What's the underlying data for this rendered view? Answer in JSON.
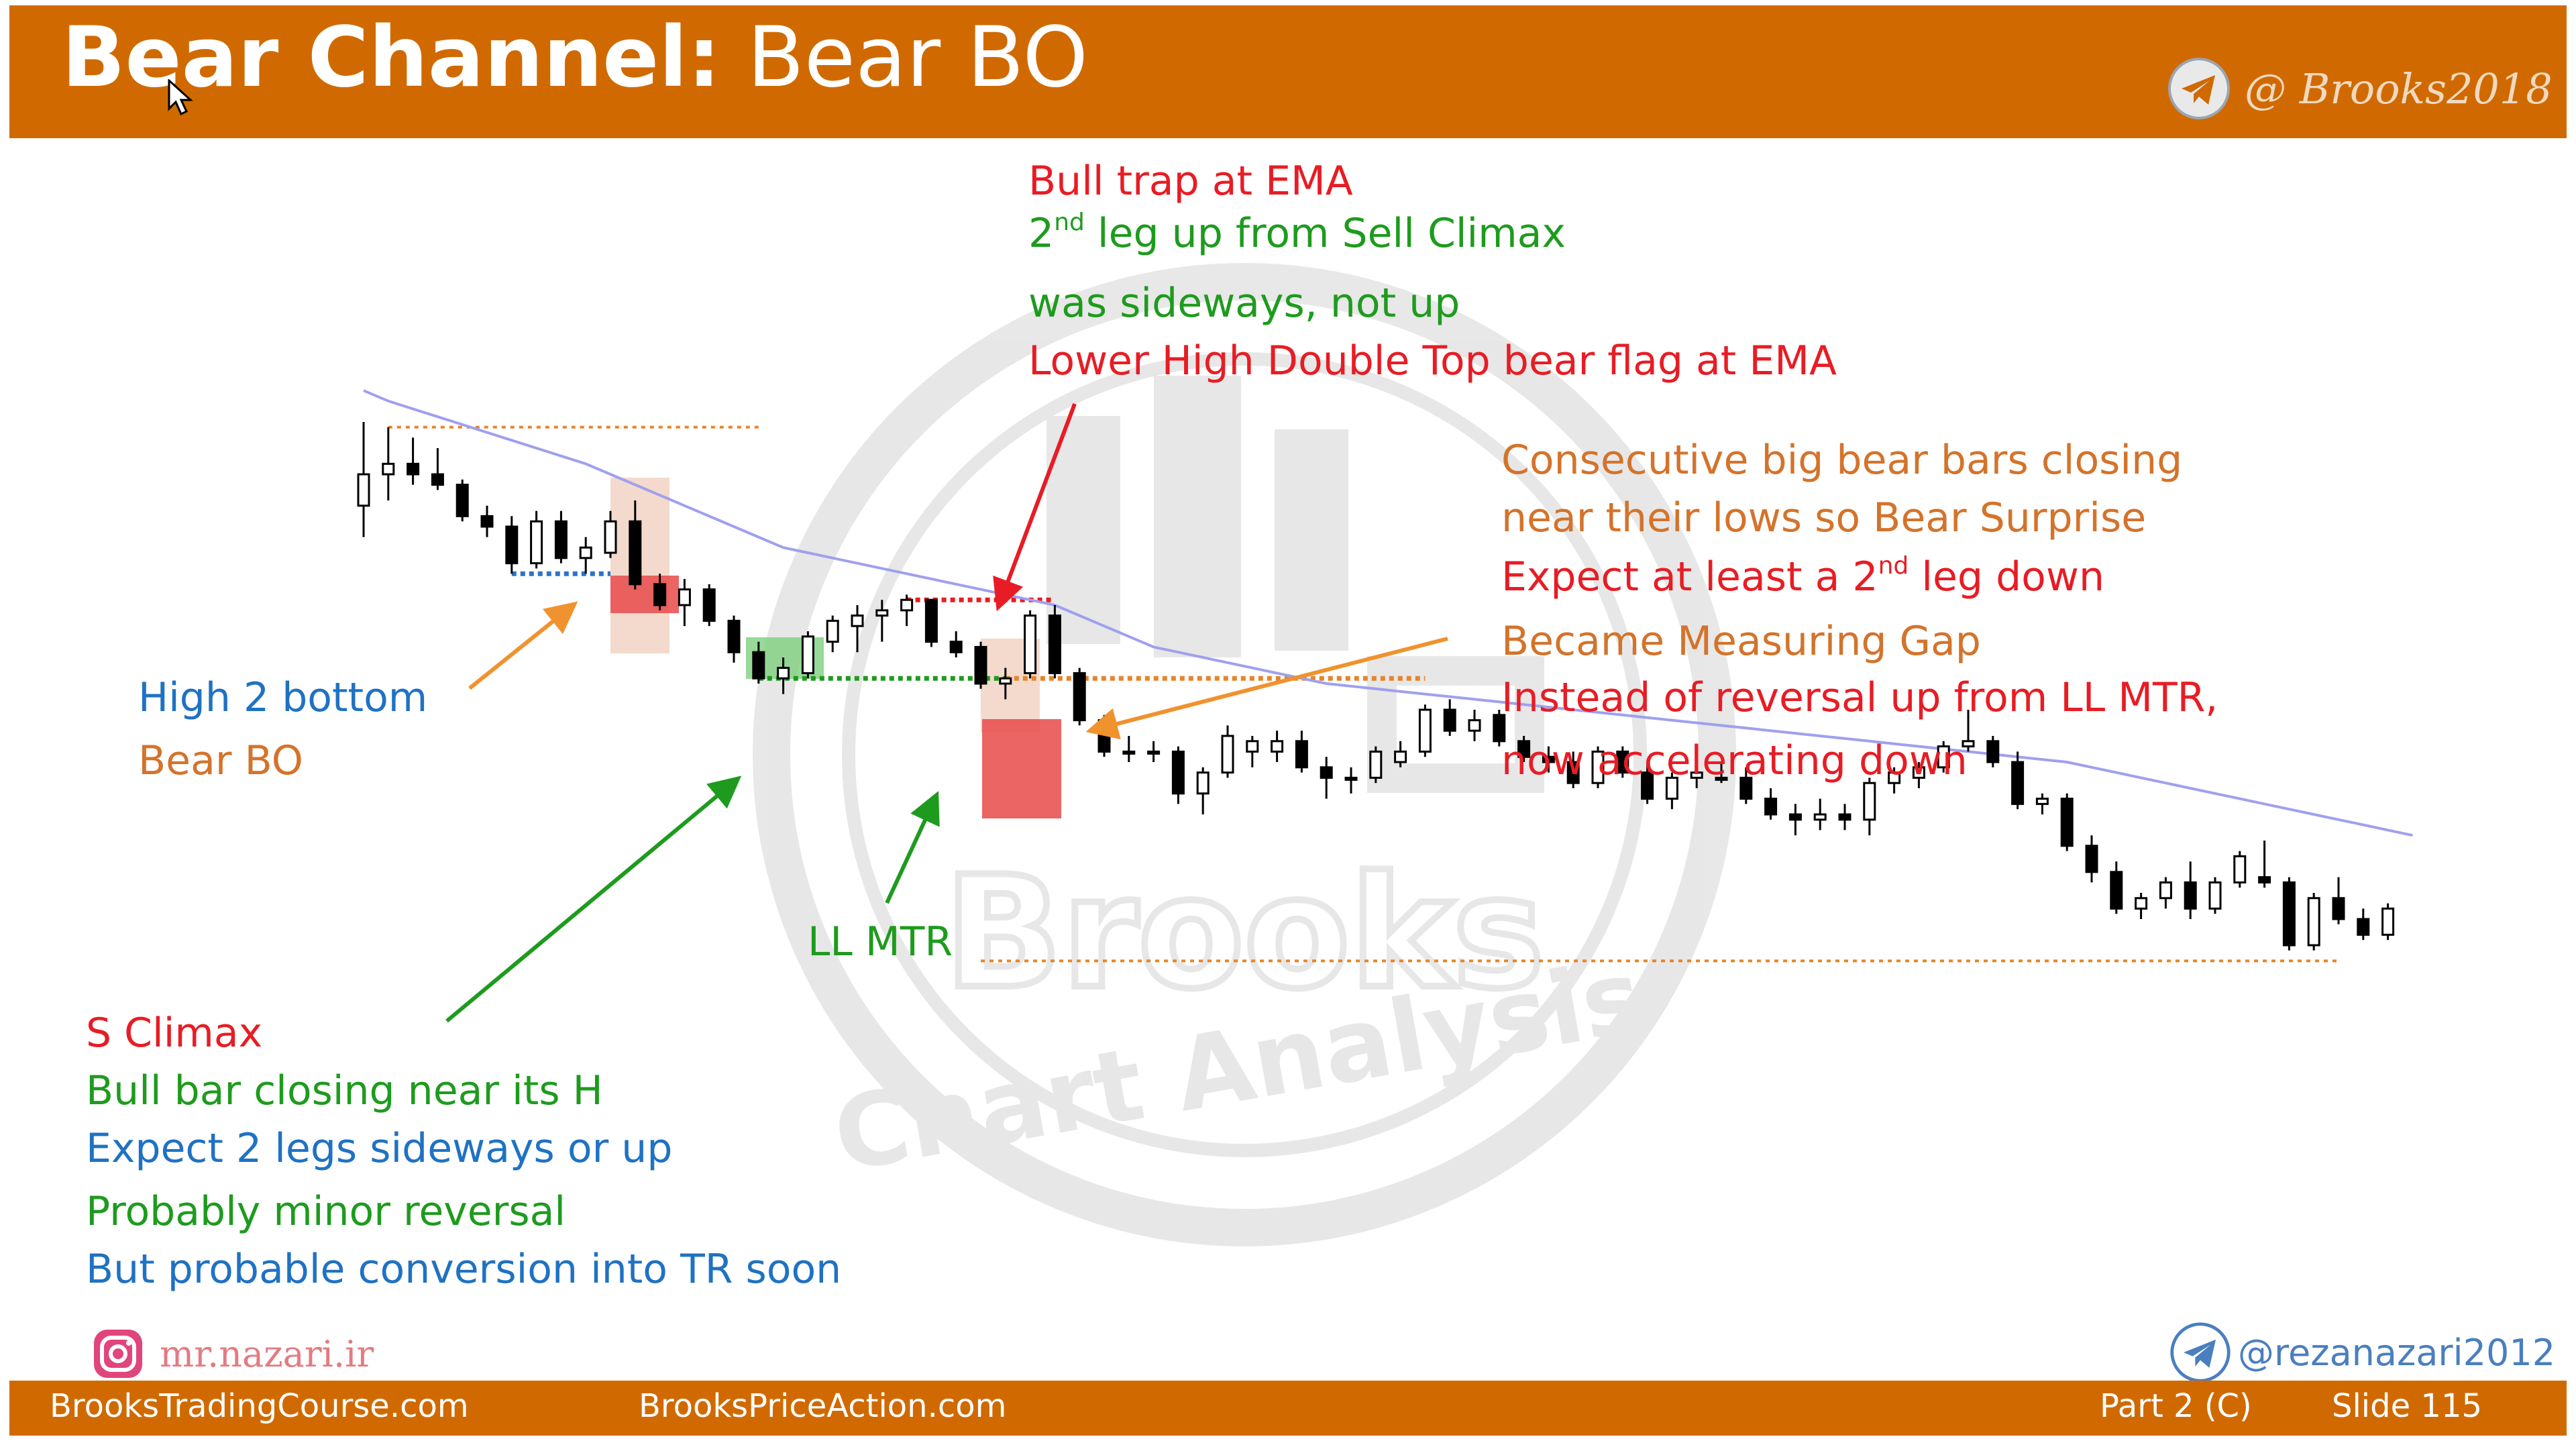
{
  "slide": {
    "title_bold": "Bear Channel:",
    "title_regular": "Bear BO",
    "header_brand": "@ Brooks2018",
    "footer": {
      "site1": "BrooksTradingCourse.com",
      "site2": "BrooksPriceAction.com",
      "part": "Part 2 (C)",
      "slide": "Slide  115"
    },
    "instagram_handle": "mr.nazari.ir",
    "telegram_handle": "@rezanazari2012",
    "watermark": "Brooks Chart Analysis",
    "colors": {
      "band": "#d06a00",
      "red": "#e81c24",
      "green": "#1e9b1e",
      "blue": "#1f72c3",
      "orange": "#d4732b",
      "ema": "#9fa0ee"
    }
  },
  "annotations": {
    "bull_trap": "Bull trap at EMA",
    "second_leg_pre": "2",
    "second_leg_sup": "nd",
    "second_leg_post": " leg up from Sell Climax",
    "sideways": "was sideways, not up",
    "lower_high": "Lower High Double Top bear flag at EMA",
    "consecutive": "Consecutive big bear bars closing",
    "near_lows": "near their lows so Bear Surprise",
    "expect_pre": "Expect at least a 2",
    "expect_sup": "nd",
    "expect_post": " leg down",
    "measuring_gap": "Became Measuring Gap",
    "instead": "Instead of reversal up from LL MTR,",
    "accelerating": "now accelerating down",
    "high2": "High 2 bottom",
    "bear_bo": "Bear BO",
    "ll_mtr": "LL MTR",
    "s_climax": "S Climax",
    "bull_bar": "Bull bar closing near its H",
    "expect_two": "Expect 2 legs sideways or up",
    "minor": "Probably minor reversal",
    "conversion": "But probable conversion into TR soon"
  },
  "chart_data": {
    "type": "candlestick",
    "title": "Bear Channel: Bear BO",
    "xlabel": "",
    "ylabel": "",
    "grid": false,
    "candles": [
      {
        "o": 54,
        "h": 70,
        "l": 48,
        "c": 60
      },
      {
        "o": 60,
        "h": 69,
        "l": 55,
        "c": 62
      },
      {
        "o": 62,
        "h": 67,
        "l": 58,
        "c": 60
      },
      {
        "o": 60,
        "h": 65,
        "l": 57,
        "c": 58
      },
      {
        "o": 58,
        "h": 59,
        "l": 51,
        "c": 52
      },
      {
        "o": 52,
        "h": 54,
        "l": 48,
        "c": 50
      },
      {
        "o": 50,
        "h": 52,
        "l": 41,
        "c": 43
      },
      {
        "o": 43,
        "h": 53,
        "l": 42,
        "c": 51
      },
      {
        "o": 51,
        "h": 53,
        "l": 43,
        "c": 44
      },
      {
        "o": 44,
        "h": 48,
        "l": 41,
        "c": 46
      },
      {
        "o": 45,
        "h": 53,
        "l": 44,
        "c": 51
      },
      {
        "o": 51,
        "h": 55,
        "l": 38,
        "c": 39
      },
      {
        "o": 39,
        "h": 41,
        "l": 34,
        "c": 35
      },
      {
        "o": 35,
        "h": 40,
        "l": 31,
        "c": 38
      },
      {
        "o": 38,
        "h": 39,
        "l": 31,
        "c": 32
      },
      {
        "o": 32,
        "h": 33,
        "l": 24,
        "c": 26
      },
      {
        "o": 26,
        "h": 28,
        "l": 20,
        "c": 21
      },
      {
        "o": 21,
        "h": 25,
        "l": 18,
        "c": 23
      },
      {
        "o": 22,
        "h": 30,
        "l": 21,
        "c": 29
      },
      {
        "o": 28,
        "h": 33,
        "l": 26,
        "c": 32
      },
      {
        "o": 31,
        "h": 35,
        "l": 26,
        "c": 33
      },
      {
        "o": 33,
        "h": 36,
        "l": 28,
        "c": 34
      },
      {
        "o": 34,
        "h": 37,
        "l": 31,
        "c": 36
      },
      {
        "o": 36,
        "h": 36,
        "l": 27,
        "c": 28
      },
      {
        "o": 28,
        "h": 30,
        "l": 25,
        "c": 26
      },
      {
        "o": 27,
        "h": 28,
        "l": 19,
        "c": 20
      },
      {
        "o": 20,
        "h": 23,
        "l": 17,
        "c": 21
      },
      {
        "o": 22,
        "h": 34,
        "l": 21,
        "c": 33
      },
      {
        "o": 33,
        "h": 35,
        "l": 21,
        "c": 22
      },
      {
        "o": 22,
        "h": 23,
        "l": 12,
        "c": 13
      },
      {
        "o": 13,
        "h": 14,
        "l": 6,
        "c": 7
      },
      {
        "o": 7,
        "h": 10,
        "l": 5,
        "c": 7
      },
      {
        "o": 7,
        "h": 9,
        "l": 5,
        "c": 7
      },
      {
        "o": 7,
        "h": 8,
        "l": -3,
        "c": -1
      },
      {
        "o": -1,
        "h": 4,
        "l": -5,
        "c": 3
      },
      {
        "o": 3,
        "h": 12,
        "l": 2,
        "c": 10
      },
      {
        "o": 7,
        "h": 10,
        "l": 4,
        "c": 9
      },
      {
        "o": 7,
        "h": 11,
        "l": 5,
        "c": 9
      },
      {
        "o": 9,
        "h": 11,
        "l": 3,
        "c": 4
      },
      {
        "o": 4,
        "h": 6,
        "l": -2,
        "c": 2
      },
      {
        "o": 2,
        "h": 4,
        "l": -1,
        "c": 2
      },
      {
        "o": 2,
        "h": 8,
        "l": 1,
        "c": 7
      },
      {
        "o": 5,
        "h": 9,
        "l": 4,
        "c": 7
      },
      {
        "o": 7,
        "h": 16,
        "l": 6,
        "c": 15
      },
      {
        "o": 15,
        "h": 17,
        "l": 10,
        "c": 11
      },
      {
        "o": 11,
        "h": 15,
        "l": 9,
        "c": 13
      },
      {
        "o": 14,
        "h": 15,
        "l": 8,
        "c": 9
      },
      {
        "o": 9,
        "h": 10,
        "l": 5,
        "c": 6
      },
      {
        "o": 6,
        "h": 8,
        "l": 3,
        "c": 5
      },
      {
        "o": 5,
        "h": 7,
        "l": 0,
        "c": 1
      },
      {
        "o": 1,
        "h": 8,
        "l": 0,
        "c": 7
      },
      {
        "o": 7,
        "h": 8,
        "l": 2,
        "c": 3
      },
      {
        "o": 3,
        "h": 5,
        "l": -3,
        "c": -2
      },
      {
        "o": -2,
        "h": 3,
        "l": -4,
        "c": 2
      },
      {
        "o": 2,
        "h": 4,
        "l": 0,
        "c": 3
      },
      {
        "o": 2,
        "h": 5,
        "l": 1,
        "c": 2
      },
      {
        "o": 2,
        "h": 4,
        "l": -3,
        "c": -2
      },
      {
        "o": -2,
        "h": 0,
        "l": -6,
        "c": -5
      },
      {
        "o": -5,
        "h": -3,
        "l": -9,
        "c": -6
      },
      {
        "o": -6,
        "h": -2,
        "l": -8,
        "c": -5
      },
      {
        "o": -5,
        "h": -3,
        "l": -8,
        "c": -6
      },
      {
        "o": -6,
        "h": 2,
        "l": -9,
        "c": 1
      },
      {
        "o": 1,
        "h": 4,
        "l": -1,
        "c": 3
      },
      {
        "o": 2,
        "h": 5,
        "l": 0,
        "c": 4
      },
      {
        "o": 4,
        "h": 9,
        "l": 3,
        "c": 8
      },
      {
        "o": 8,
        "h": 15,
        "l": 7,
        "c": 9
      },
      {
        "o": 9,
        "h": 10,
        "l": 4,
        "c": 5
      },
      {
        "o": 5,
        "h": 7,
        "l": -4,
        "c": -3
      },
      {
        "o": -3,
        "h": -1,
        "l": -5,
        "c": -2
      },
      {
        "o": -2,
        "h": -1,
        "l": -12,
        "c": -11
      },
      {
        "o": -11,
        "h": -9,
        "l": -18,
        "c": -16
      },
      {
        "o": -16,
        "h": -14,
        "l": -24,
        "c": -23
      },
      {
        "o": -23,
        "h": -20,
        "l": -25,
        "c": -21
      },
      {
        "o": -21,
        "h": -17,
        "l": -23,
        "c": -18
      },
      {
        "o": -18,
        "h": -14,
        "l": -25,
        "c": -23
      },
      {
        "o": -23,
        "h": -17,
        "l": -24,
        "c": -18
      },
      {
        "o": -18,
        "h": -12,
        "l": -19,
        "c": -13
      },
      {
        "o": -17,
        "h": -10,
        "l": -19,
        "c": -18
      },
      {
        "o": -18,
        "h": -17,
        "l": -31,
        "c": -30
      },
      {
        "o": -30,
        "h": -20,
        "l": -31,
        "c": -21
      },
      {
        "o": -21,
        "h": -17,
        "l": -26,
        "c": -25
      },
      {
        "o": -25,
        "h": -23,
        "l": -29,
        "c": -28
      },
      {
        "o": -28,
        "h": -22,
        "l": -29,
        "c": -23
      }
    ],
    "ema": [
      76,
      74,
      72.5,
      71,
      69.5,
      68,
      66.5,
      65,
      63.5,
      62,
      60,
      58,
      56,
      54,
      52,
      50,
      48,
      46,
      45,
      44,
      43,
      42,
      41,
      40,
      39,
      38,
      37,
      36,
      35,
      33,
      31,
      29,
      27,
      26,
      25,
      24,
      23,
      22,
      21,
      20,
      19.5,
      19,
      18.5,
      18,
      17.5,
      17,
      16.5,
      16,
      15.5,
      15,
      14.5,
      14,
      13.5,
      13,
      12.5,
      12,
      11.5,
      11,
      10.5,
      10,
      9.5,
      9,
      8.5,
      8,
      7.5,
      7,
      6.5,
      6,
      5.5,
      5,
      4,
      3,
      2,
      1,
      0,
      -1,
      -2,
      -3,
      -4,
      -5,
      -6,
      -7,
      -8,
      -9
    ],
    "lines": [
      {
        "name": "top-line",
        "y": 69,
        "from": 1,
        "to": 16,
        "color": "#e8842a",
        "style": "dotted"
      },
      {
        "name": "high2-line",
        "y": 41,
        "from": 6,
        "to": 10,
        "color": "#2b73c8",
        "style": "dotted"
      },
      {
        "name": "double-top-line",
        "y": 36,
        "from": 22,
        "to": 28,
        "color": "#e81c24",
        "style": "dotted"
      },
      {
        "name": "llmtr-line",
        "y": 21,
        "from": 16,
        "to": 26,
        "color": "#1e9b1e",
        "style": "dotted"
      },
      {
        "name": "measuring-gap-line",
        "y": 21,
        "from": 26,
        "to": 43,
        "color": "#e8842a",
        "style": "dotted"
      },
      {
        "name": "bottom-line",
        "y": -33,
        "from": 25,
        "to": 80,
        "color": "#e8842a",
        "style": "dotted"
      }
    ]
  }
}
